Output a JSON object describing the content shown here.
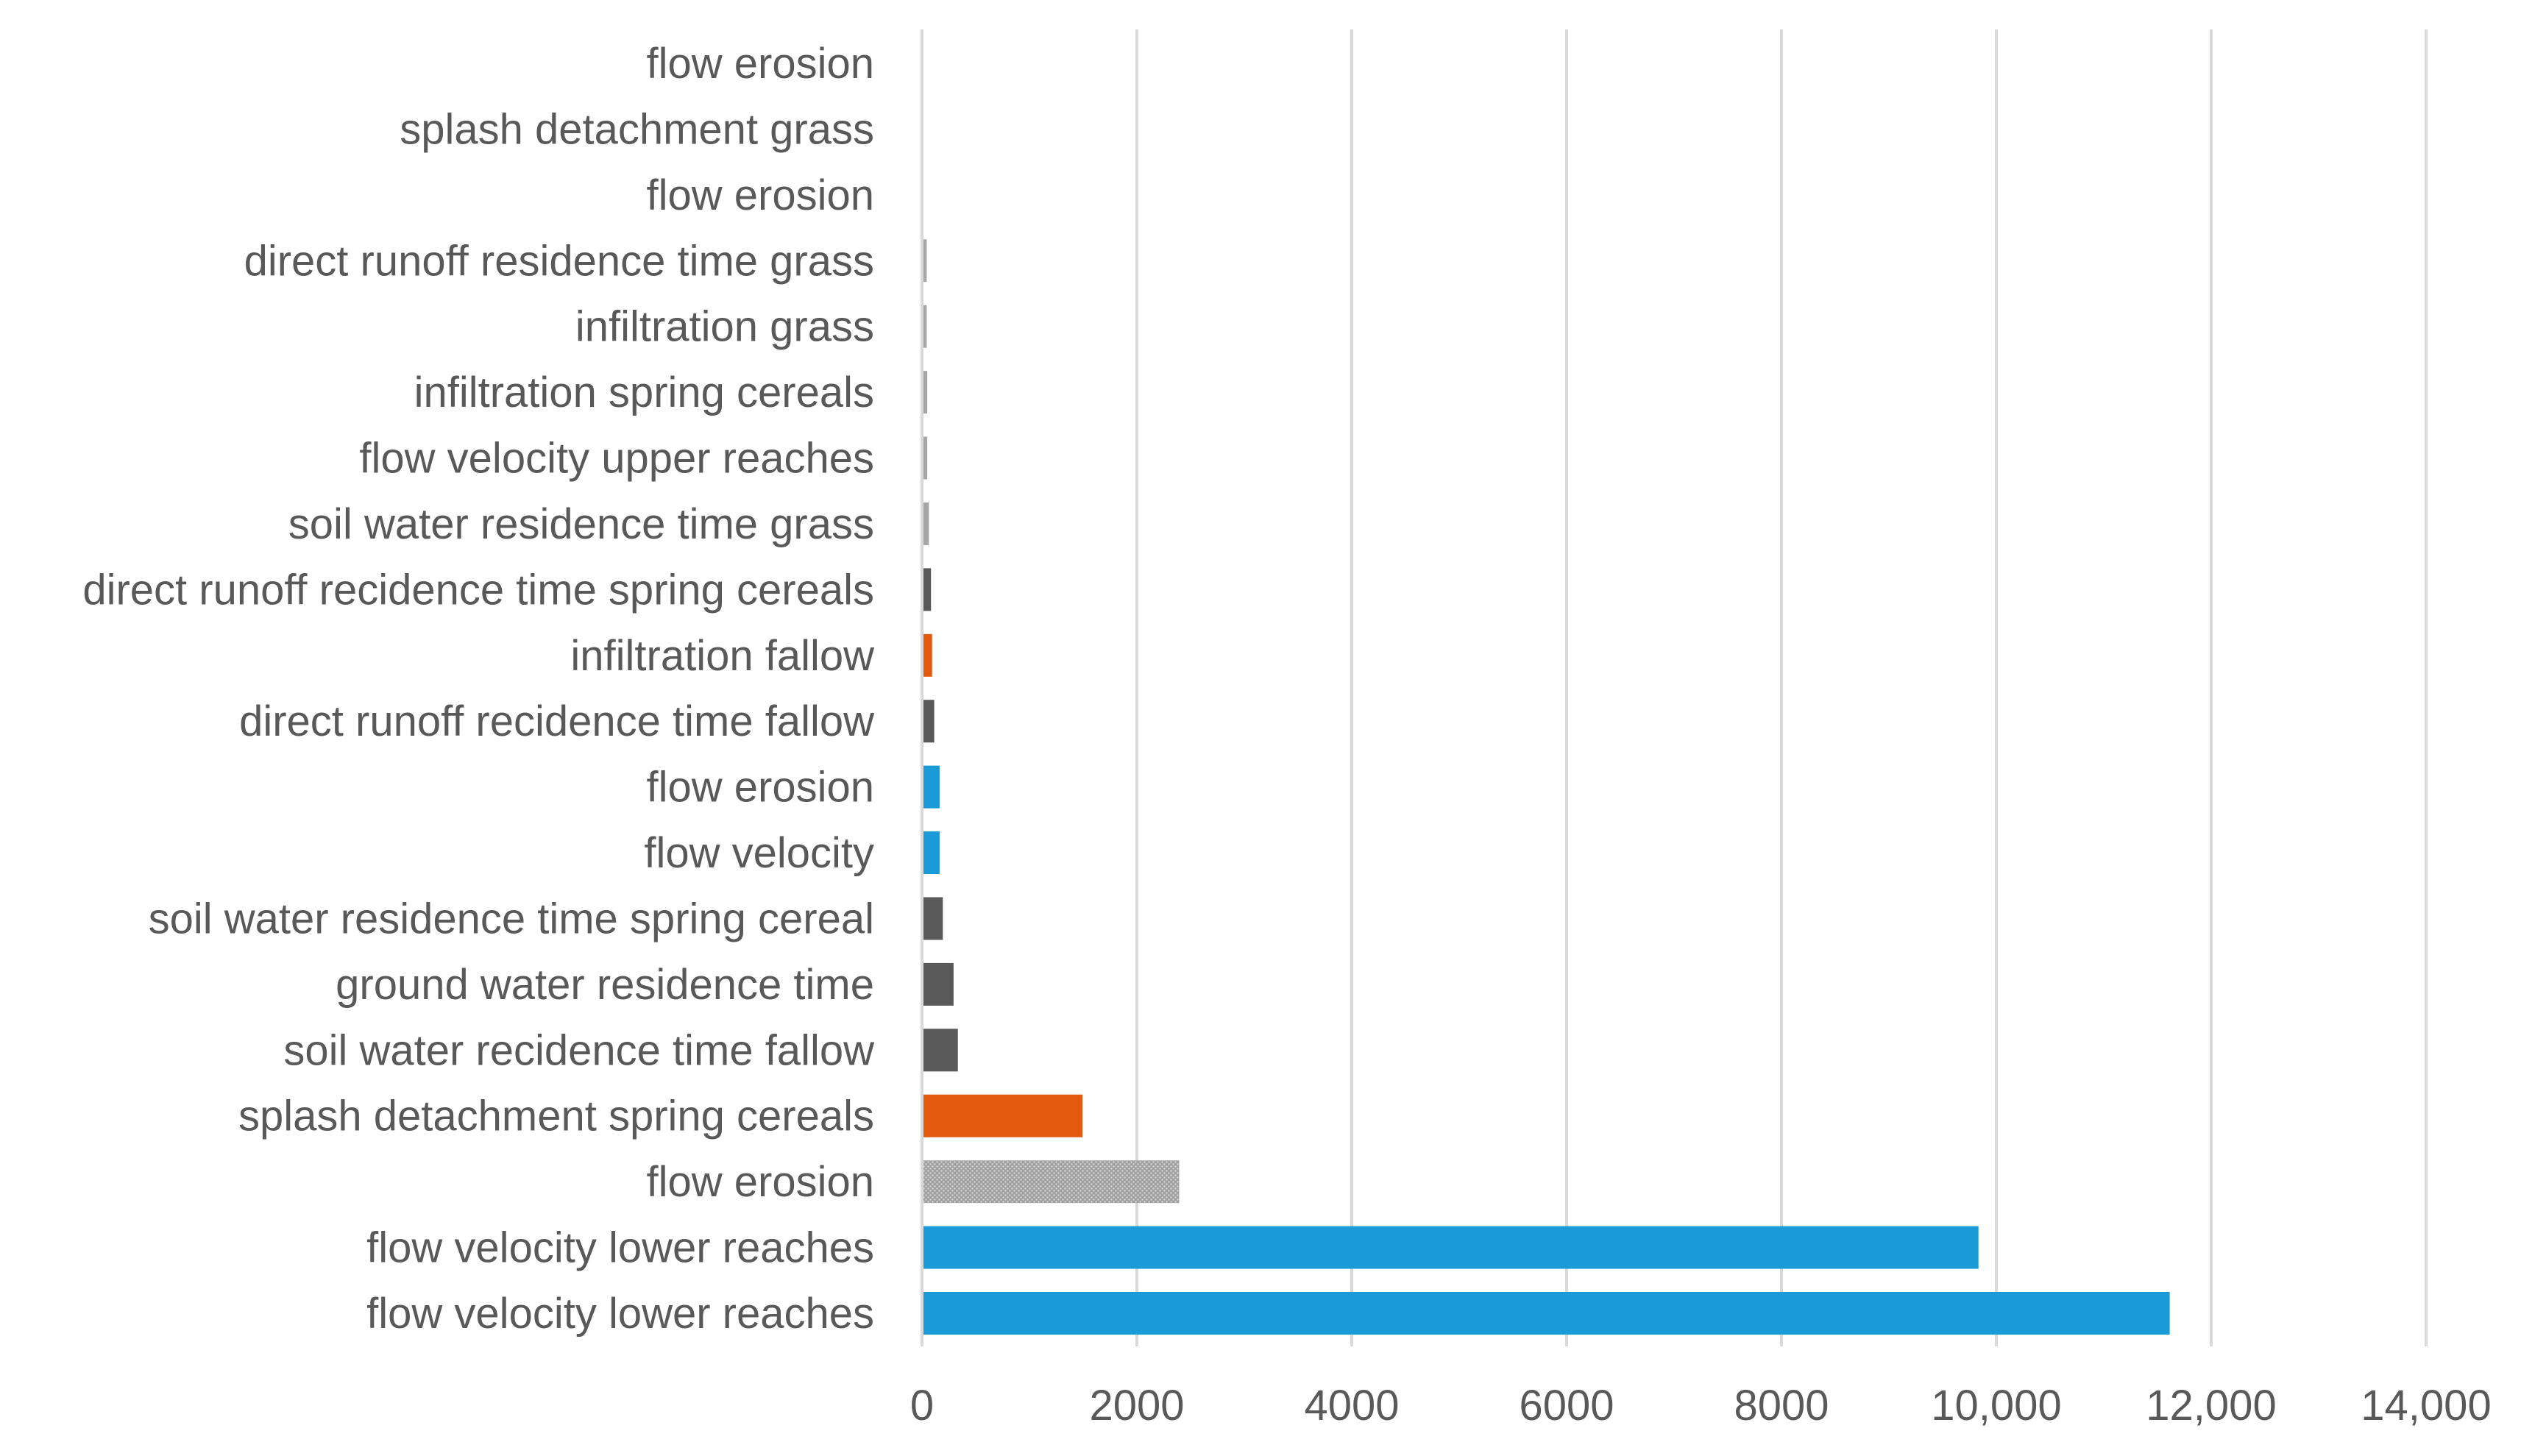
{
  "chart_data": {
    "type": "bar",
    "orientation": "horizontal",
    "title": "",
    "xlabel": "",
    "ylabel": "",
    "xlim": [
      0,
      14000
    ],
    "grid": true,
    "legend": "none",
    "x_ticks": [
      {
        "value": 0,
        "label": "0"
      },
      {
        "value": 2000,
        "label": "2000"
      },
      {
        "value": 4000,
        "label": "4000"
      },
      {
        "value": 6000,
        "label": "6000"
      },
      {
        "value": 8000,
        "label": "8000"
      },
      {
        "value": 10000,
        "label": "10,000"
      },
      {
        "value": 12000,
        "label": "12,000"
      },
      {
        "value": 14000,
        "label": "14,000"
      }
    ],
    "categories": [
      "flow erosion",
      "splash detachment grass",
      "flow erosion",
      "direct runoff residence time grass",
      "infiltration grass",
      "infiltration spring cereals",
      "flow velocity upper reaches",
      "soil water residence time grass",
      "direct runoff recidence time spring cereals",
      "infiltration fallow",
      "direct runoff recidence time fallow",
      "flow erosion",
      "flow velocity",
      "soil water residence time spring cereal",
      "ground water residence time",
      "soil water recidence time fallow",
      "splash detachment spring cereals",
      "flow erosion",
      "flow velocity lower reaches",
      "flow velocity lower reaches"
    ],
    "values": [
      0,
      0,
      0,
      30,
      30,
      35,
      35,
      50,
      70,
      80,
      100,
      150,
      150,
      180,
      280,
      320,
      1480,
      2380,
      9820,
      11600
    ],
    "colors": [
      "#a6a6a6",
      "#a6a6a6",
      "#a6a6a6",
      "#a6a6a6",
      "#a6a6a6",
      "#a6a6a6",
      "#a6a6a6",
      "#a6a6a6",
      "#595959",
      "#e35a0e",
      "#595959",
      "#1a9ad7",
      "#1a9ad7",
      "#595959",
      "#595959",
      "#595959",
      "#e35a0e",
      "#a6a6a6",
      "#1a9ad7",
      "#1a9ad7"
    ],
    "patterned": [
      false,
      false,
      false,
      false,
      false,
      false,
      false,
      false,
      false,
      false,
      false,
      false,
      false,
      false,
      false,
      false,
      false,
      true,
      false,
      false
    ]
  }
}
